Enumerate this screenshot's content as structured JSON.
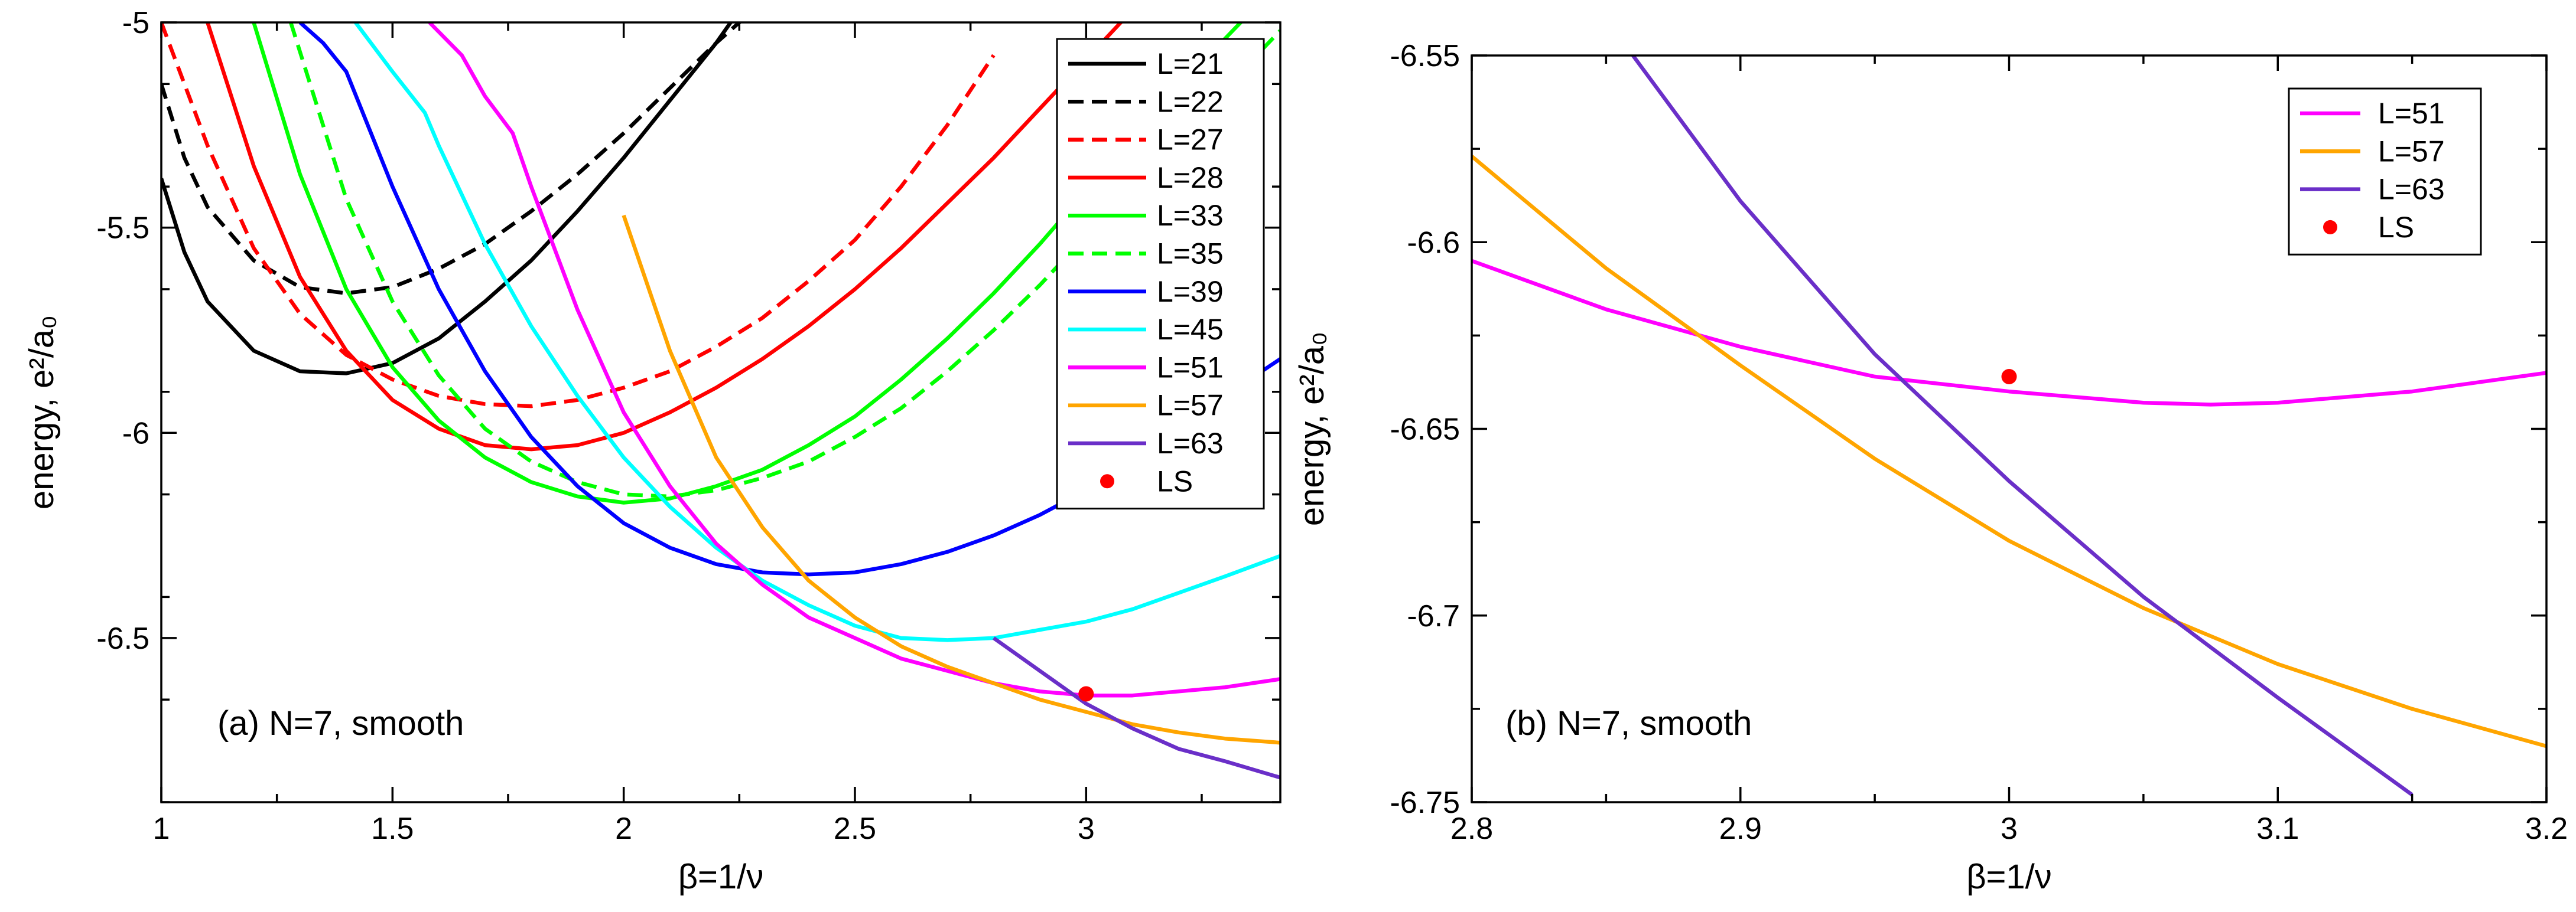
{
  "chart_data": [
    {
      "type": "line",
      "panel": "a",
      "annotation": "(a)     N=7, smooth",
      "xlabel": "β=1/ν",
      "ylabel": "energy, e²/a₀",
      "xlim": [
        1,
        3.42
      ],
      "ylim": [
        -6.9,
        -5
      ],
      "xticks": [
        1,
        1.5,
        2,
        2.5,
        3
      ],
      "xtick_labels": [
        "1",
        "1.5",
        "2",
        "2.5",
        "3"
      ],
      "yticks": [
        -5,
        -5.5,
        -6,
        -6.5
      ],
      "ytick_labels": [
        "-5",
        "-5.5",
        "-6",
        "-6.5"
      ],
      "legend_position": "top-right",
      "series": [
        {
          "name": "L=21",
          "color": "#000000",
          "dash": "solid",
          "x": [
            1.0,
            1.05,
            1.1,
            1.2,
            1.3,
            1.4,
            1.5,
            1.6,
            1.7,
            1.8,
            1.9,
            2.0,
            2.1,
            2.2,
            2.25
          ],
          "y": [
            -5.38,
            -5.56,
            -5.68,
            -5.8,
            -5.85,
            -5.855,
            -5.83,
            -5.77,
            -5.68,
            -5.58,
            -5.46,
            -5.33,
            -5.19,
            -5.05,
            -4.97
          ]
        },
        {
          "name": "L=22",
          "color": "#000000",
          "dash": "dashed",
          "x": [
            1.0,
            1.05,
            1.1,
            1.2,
            1.3,
            1.4,
            1.5,
            1.6,
            1.7,
            1.8,
            1.9,
            2.0,
            2.1,
            2.2,
            2.3
          ],
          "y": [
            -5.15,
            -5.33,
            -5.45,
            -5.58,
            -5.645,
            -5.66,
            -5.645,
            -5.6,
            -5.54,
            -5.46,
            -5.37,
            -5.27,
            -5.16,
            -5.05,
            -4.95
          ]
        },
        {
          "name": "L=27",
          "color": "#ff0000",
          "dash": "dashed",
          "x": [
            1.0,
            1.1,
            1.2,
            1.3,
            1.4,
            1.5,
            1.6,
            1.7,
            1.8,
            1.9,
            2.0,
            2.1,
            2.2,
            2.3,
            2.4,
            2.5,
            2.6,
            2.7,
            2.8
          ],
          "y": [
            -5.0,
            -5.3,
            -5.55,
            -5.71,
            -5.81,
            -5.87,
            -5.91,
            -5.93,
            -5.935,
            -5.92,
            -5.89,
            -5.85,
            -5.79,
            -5.72,
            -5.63,
            -5.53,
            -5.4,
            -5.25,
            -5.08
          ]
        },
        {
          "name": "L=28",
          "color": "#ff0000",
          "dash": "solid",
          "x": [
            1.1,
            1.2,
            1.3,
            1.4,
            1.5,
            1.6,
            1.7,
            1.8,
            1.9,
            2.0,
            2.1,
            2.2,
            2.3,
            2.4,
            2.5,
            2.6,
            2.7,
            2.8,
            2.9,
            3.0,
            3.1,
            3.2
          ],
          "y": [
            -5.0,
            -5.35,
            -5.62,
            -5.8,
            -5.92,
            -5.99,
            -6.03,
            -6.04,
            -6.03,
            -6.0,
            -5.95,
            -5.89,
            -5.82,
            -5.74,
            -5.65,
            -5.55,
            -5.44,
            -5.33,
            -5.21,
            -5.09,
            -4.97,
            -4.85
          ]
        },
        {
          "name": "L=33",
          "color": "#00ff00",
          "dash": "solid",
          "x": [
            1.2,
            1.3,
            1.4,
            1.5,
            1.6,
            1.7,
            1.8,
            1.9,
            2.0,
            2.1,
            2.2,
            2.3,
            2.4,
            2.5,
            2.6,
            2.7,
            2.8,
            2.9,
            3.0,
            3.1,
            3.2,
            3.3,
            3.42
          ],
          "y": [
            -5.0,
            -5.37,
            -5.65,
            -5.84,
            -5.97,
            -6.06,
            -6.12,
            -6.155,
            -6.17,
            -6.16,
            -6.13,
            -6.09,
            -6.03,
            -5.96,
            -5.87,
            -5.77,
            -5.66,
            -5.54,
            -5.41,
            -5.28,
            -5.16,
            -5.04,
            -4.9
          ]
        },
        {
          "name": "L=35",
          "color": "#00ff00",
          "dash": "dashed",
          "x": [
            1.28,
            1.4,
            1.5,
            1.6,
            1.7,
            1.8,
            1.9,
            2.0,
            2.1,
            2.2,
            2.3,
            2.4,
            2.5,
            2.6,
            2.7,
            2.8,
            2.9,
            3.0,
            3.1,
            3.2,
            3.3,
            3.42
          ],
          "y": [
            -5.0,
            -5.43,
            -5.68,
            -5.86,
            -5.99,
            -6.07,
            -6.12,
            -6.15,
            -6.155,
            -6.14,
            -6.11,
            -6.07,
            -6.01,
            -5.94,
            -5.85,
            -5.75,
            -5.64,
            -5.52,
            -5.4,
            -5.28,
            -5.16,
            -5.02
          ]
        },
        {
          "name": "L=39",
          "color": "#0000ff",
          "dash": "solid",
          "x": [
            1.3,
            1.35,
            1.4,
            1.5,
            1.6,
            1.7,
            1.8,
            1.9,
            2.0,
            2.1,
            2.2,
            2.3,
            2.4,
            2.5,
            2.6,
            2.7,
            2.8,
            2.9,
            3.0,
            3.1,
            3.2,
            3.3,
            3.42
          ],
          "y": [
            -5.0,
            -5.05,
            -5.12,
            -5.4,
            -5.65,
            -5.85,
            -6.01,
            -6.13,
            -6.22,
            -6.28,
            -6.32,
            -6.34,
            -6.345,
            -6.34,
            -6.32,
            -6.29,
            -6.25,
            -6.2,
            -6.14,
            -6.07,
            -5.99,
            -5.91,
            -5.82
          ]
        },
        {
          "name": "L=45",
          "color": "#00ffff",
          "dash": "solid",
          "x": [
            1.42,
            1.5,
            1.57,
            1.6,
            1.7,
            1.8,
            1.9,
            2.0,
            2.1,
            2.2,
            2.3,
            2.4,
            2.5,
            2.6,
            2.7,
            2.8,
            2.9,
            3.0,
            3.1,
            3.2,
            3.3,
            3.42
          ],
          "y": [
            -5.0,
            -5.12,
            -5.22,
            -5.3,
            -5.54,
            -5.74,
            -5.91,
            -6.06,
            -6.18,
            -6.28,
            -6.36,
            -6.42,
            -6.47,
            -6.5,
            -6.505,
            -6.5,
            -6.48,
            -6.46,
            -6.43,
            -6.39,
            -6.35,
            -6.3
          ]
        },
        {
          "name": "L=51",
          "color": "#ff00ff",
          "dash": "solid",
          "x": [
            1.58,
            1.65,
            1.7,
            1.76,
            1.8,
            1.9,
            2.0,
            2.1,
            2.2,
            2.3,
            2.4,
            2.5,
            2.6,
            2.7,
            2.8,
            2.9,
            3.0,
            3.1,
            3.2,
            3.3,
            3.42
          ],
          "y": [
            -5.0,
            -5.08,
            -5.18,
            -5.27,
            -5.4,
            -5.7,
            -5.95,
            -6.13,
            -6.27,
            -6.37,
            -6.45,
            -6.5,
            -6.55,
            -6.58,
            -6.61,
            -6.63,
            -6.64,
            -6.64,
            -6.63,
            -6.62,
            -6.6
          ]
        },
        {
          "name": "L=57",
          "color": "#ffa500",
          "dash": "solid",
          "x": [
            2.0,
            2.1,
            2.2,
            2.3,
            2.4,
            2.5,
            2.6,
            2.7,
            2.8,
            2.9,
            3.0,
            3.1,
            3.2,
            3.3,
            3.42
          ],
          "y": [
            -5.47,
            -5.8,
            -6.06,
            -6.23,
            -6.36,
            -6.45,
            -6.52,
            -6.57,
            -6.61,
            -6.65,
            -6.68,
            -6.71,
            -6.73,
            -6.745,
            -6.755
          ]
        },
        {
          "name": "L=63",
          "color": "#6a2fc8",
          "dash": "solid",
          "x": [
            2.8,
            2.9,
            3.0,
            3.1,
            3.2,
            3.3,
            3.42
          ],
          "y": [
            -6.5,
            -6.58,
            -6.66,
            -6.72,
            -6.77,
            -6.8,
            -6.84
          ]
        }
      ],
      "points": [
        {
          "name": "LS",
          "color": "#ff0000",
          "x": 3.0,
          "y": -6.636
        }
      ]
    },
    {
      "type": "line",
      "panel": "b",
      "annotation": "(b)     N=7, smooth",
      "xlabel": "β=1/ν",
      "ylabel": "energy, e²/a₀",
      "xlim": [
        2.8,
        3.2
      ],
      "ylim": [
        -6.75,
        -6.55
      ],
      "xticks": [
        2.8,
        2.9,
        3.0,
        3.1,
        3.2
      ],
      "xtick_labels": [
        "2.8",
        "2.9",
        "3",
        "3.1",
        "3.2"
      ],
      "yticks": [
        -6.75,
        -6.7,
        -6.65,
        -6.6,
        -6.55
      ],
      "ytick_labels": [
        "-6.75",
        "-6.7",
        "-6.65",
        "-6.6",
        "-6.55"
      ],
      "legend_position": "top-right",
      "series": [
        {
          "name": "L=51",
          "color": "#ff00ff",
          "dash": "solid",
          "x": [
            2.8,
            2.85,
            2.9,
            2.95,
            3.0,
            3.05,
            3.075,
            3.1,
            3.15,
            3.2
          ],
          "y": [
            -6.605,
            -6.618,
            -6.628,
            -6.636,
            -6.64,
            -6.643,
            -6.6435,
            -6.643,
            -6.64,
            -6.635
          ]
        },
        {
          "name": "L=57",
          "color": "#ffa500",
          "dash": "solid",
          "x": [
            2.8,
            2.85,
            2.9,
            2.95,
            3.0,
            3.05,
            3.1,
            3.15,
            3.2
          ],
          "y": [
            -6.577,
            -6.607,
            -6.633,
            -6.658,
            -6.68,
            -6.698,
            -6.713,
            -6.725,
            -6.735
          ]
        },
        {
          "name": "L=63",
          "color": "#6a2fc8",
          "dash": "solid",
          "x": [
            2.86,
            2.9,
            2.95,
            3.0,
            3.05,
            3.1,
            3.15
          ],
          "y": [
            -6.55,
            -6.589,
            -6.63,
            -6.664,
            -6.695,
            -6.722,
            -6.748
          ]
        }
      ],
      "points": [
        {
          "name": "LS",
          "color": "#ff0000",
          "x": 3.0,
          "y": -6.636
        }
      ]
    }
  ]
}
